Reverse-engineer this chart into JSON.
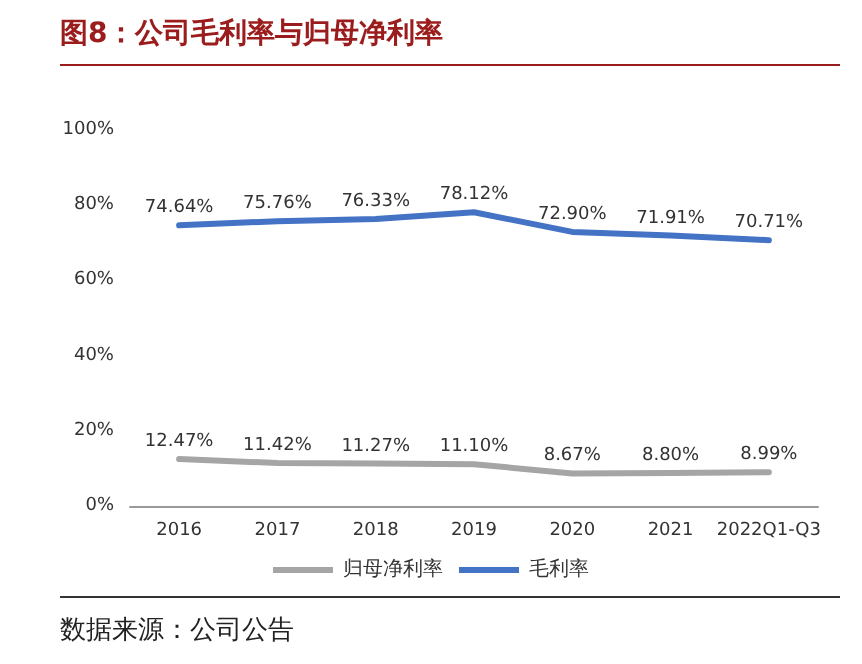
{
  "chart_data": {
    "type": "line",
    "title": "图8：公司毛利率与归母净利率",
    "annotations": [
      "数据来源：公司公告"
    ],
    "categories": [
      "2016",
      "2017",
      "2018",
      "2019",
      "2020",
      "2021",
      "2022Q1-Q3"
    ],
    "series": [
      {
        "name": "归母净利率",
        "color": "#a5a5a5",
        "values": [
          12.47,
          11.42,
          11.27,
          11.1,
          8.67,
          8.8,
          8.99
        ],
        "value_labels": [
          "12.47%",
          "11.42%",
          "11.27%",
          "11.10%",
          "8.67%",
          "8.80%",
          "8.99%"
        ]
      },
      {
        "name": "毛利率",
        "color": "#4472c4",
        "values": [
          74.64,
          75.76,
          76.33,
          78.12,
          72.9,
          71.91,
          70.71
        ],
        "value_labels": [
          "74.64%",
          "75.76%",
          "76.33%",
          "78.12%",
          "72.90%",
          "71.91%",
          "70.71%"
        ]
      }
    ],
    "ylim": [
      0,
      100
    ],
    "yticks": [
      {
        "value": 0,
        "label": "0%"
      },
      {
        "value": 20,
        "label": "20%"
      },
      {
        "value": 40,
        "label": "40%"
      },
      {
        "value": 60,
        "label": "60%"
      },
      {
        "value": 80,
        "label": "80%"
      },
      {
        "value": 100,
        "label": "100%"
      }
    ],
    "grid": false,
    "legend": "bottom",
    "marker": "none",
    "line_style": "solid"
  }
}
